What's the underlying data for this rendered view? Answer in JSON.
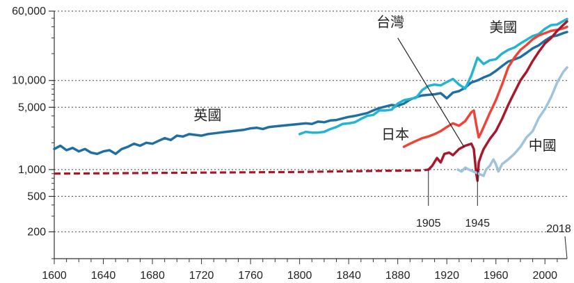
{
  "chart_data": {
    "type": "line",
    "title": "",
    "xlabel": "",
    "ylabel": "",
    "xlim": [
      1600,
      2018
    ],
    "ylim": [
      100,
      60000
    ],
    "y_scale": "log",
    "grid": "horizontal dotted at labeled y ticks",
    "legend": "none (series labelled directly on chart)",
    "x_ticks": [
      1600,
      1640,
      1680,
      1720,
      1760,
      1800,
      1840,
      1880,
      1920,
      1960,
      2000
    ],
    "x_tick_labels": [
      "1600",
      "1640",
      "1680",
      "1720",
      "1760",
      "1800",
      "1840",
      "1880",
      "1920",
      "1960",
      "2000"
    ],
    "y_ticks": [
      200,
      500,
      1000,
      5000,
      10000,
      60000
    ],
    "y_tick_labels": [
      "200",
      "500",
      "1,000",
      "5,000",
      "10,000",
      "60,000"
    ],
    "series": [
      {
        "name": "英國",
        "color": "#1f6fa3",
        "style": "solid",
        "x": [
          1600,
          1605,
          1610,
          1615,
          1620,
          1625,
          1630,
          1635,
          1640,
          1645,
          1650,
          1655,
          1660,
          1665,
          1670,
          1675,
          1680,
          1685,
          1690,
          1695,
          1700,
          1705,
          1710,
          1715,
          1720,
          1725,
          1730,
          1735,
          1740,
          1745,
          1750,
          1755,
          1760,
          1765,
          1770,
          1775,
          1780,
          1785,
          1790,
          1795,
          1800,
          1805,
          1810,
          1815,
          1820,
          1825,
          1830,
          1835,
          1840,
          1845,
          1850,
          1855,
          1860,
          1865,
          1870,
          1875,
          1880,
          1885,
          1890,
          1895,
          1900,
          1905,
          1910,
          1915,
          1920,
          1925,
          1930,
          1935,
          1940,
          1945,
          1950,
          1955,
          1960,
          1965,
          1970,
          1975,
          1980,
          1985,
          1990,
          1995,
          2000,
          2005,
          2010,
          2015,
          2018
        ],
        "values": [
          1700,
          1850,
          1650,
          1750,
          1600,
          1700,
          1550,
          1500,
          1600,
          1650,
          1500,
          1700,
          1800,
          1950,
          1850,
          2000,
          1950,
          2100,
          2250,
          2150,
          2400,
          2350,
          2500,
          2450,
          2400,
          2500,
          2550,
          2600,
          2650,
          2700,
          2750,
          2800,
          2900,
          2950,
          2850,
          3000,
          3050,
          3100,
          3150,
          3200,
          3250,
          3300,
          3250,
          3450,
          3400,
          3550,
          3600,
          3750,
          3900,
          4000,
          4150,
          4300,
          4600,
          4900,
          5100,
          5300,
          5200,
          5500,
          6100,
          6500,
          6800,
          6900,
          7000,
          7200,
          6300,
          7300,
          7600,
          8300,
          9500,
          10000,
          10800,
          11500,
          12800,
          14500,
          16300,
          17200,
          18300,
          20400,
          22900,
          24800,
          28000,
          31000,
          32000,
          34000,
          35000
        ]
      },
      {
        "name": "美國",
        "color": "#22b5d1",
        "style": "solid",
        "x": [
          1800,
          1805,
          1810,
          1815,
          1820,
          1825,
          1830,
          1835,
          1840,
          1845,
          1850,
          1855,
          1860,
          1865,
          1870,
          1875,
          1880,
          1885,
          1890,
          1895,
          1900,
          1905,
          1910,
          1915,
          1920,
          1925,
          1930,
          1935,
          1940,
          1945,
          1950,
          1955,
          1960,
          1965,
          1970,
          1975,
          1980,
          1985,
          1990,
          1995,
          2000,
          2005,
          2010,
          2015,
          2018
        ],
        "values": [
          2500,
          2650,
          2600,
          2600,
          2650,
          2850,
          3000,
          3250,
          3300,
          3400,
          3700,
          4000,
          4100,
          4600,
          4600,
          4700,
          5500,
          6000,
          6200,
          6400,
          7800,
          8700,
          9000,
          8800,
          9600,
          10400,
          9000,
          8100,
          11400,
          18000,
          15300,
          16800,
          17300,
          20000,
          22000,
          23400,
          26000,
          28600,
          31500,
          33200,
          38000,
          41800,
          42500,
          46500,
          49000
        ]
      },
      {
        "name": "日本",
        "color": "#ef4338",
        "style": "solid",
        "x": [
          1885,
          1890,
          1895,
          1900,
          1905,
          1910,
          1915,
          1920,
          1925,
          1930,
          1935,
          1940,
          1942,
          1944,
          1945,
          1946,
          1948,
          1950,
          1955,
          1960,
          1965,
          1970,
          1975,
          1980,
          1985,
          1990,
          1995,
          2000,
          2005,
          2010,
          2015,
          2018
        ],
        "values": [
          1800,
          1950,
          2100,
          2250,
          2350,
          2500,
          2700,
          3000,
          3300,
          3100,
          3500,
          4400,
          4600,
          3200,
          2700,
          2300,
          2600,
          3000,
          4300,
          6000,
          9000,
          14000,
          18000,
          22000,
          25000,
          29000,
          32000,
          34000,
          36000,
          37000,
          38500,
          40000
        ]
      },
      {
        "name": "台灣",
        "color": "#a8172a",
        "style": "dashed",
        "x": [
          1600,
          1650,
          1700,
          1750,
          1800,
          1850,
          1900,
          1905
        ],
        "values": [
          900,
          910,
          920,
          930,
          940,
          960,
          980,
          1000
        ]
      },
      {
        "name": "台灣",
        "color": "#a8172a",
        "style": "solid",
        "x": [
          1905,
          1908,
          1912,
          1915,
          1918,
          1922,
          1925,
          1930,
          1935,
          1940,
          1942,
          1944,
          1945,
          1946,
          1948,
          1950,
          1955,
          1960,
          1965,
          1970,
          1975,
          1980,
          1985,
          1990,
          1995,
          2000,
          2005,
          2010,
          2015,
          2018
        ],
        "values": [
          1000,
          1100,
          1350,
          1200,
          1500,
          1550,
          1450,
          1700,
          1850,
          1950,
          1700,
          900,
          750,
          1200,
          1450,
          1700,
          2200,
          2700,
          3700,
          5300,
          7300,
          10000,
          12500,
          16500,
          21000,
          26000,
          30000,
          36000,
          42000,
          46000
        ]
      },
      {
        "name": "中國",
        "color": "#9ec3da",
        "style": "solid",
        "x": [
          1929,
          1932,
          1935,
          1938,
          1950,
          1952,
          1955,
          1958,
          1960,
          1962,
          1965,
          1970,
          1975,
          1980,
          1985,
          1990,
          1995,
          2000,
          2005,
          2010,
          2015,
          2018
        ],
        "values": [
          1000,
          950,
          1050,
          1000,
          850,
          1000,
          1100,
          1300,
          1150,
          950,
          1150,
          1300,
          1500,
          1800,
          2300,
          2700,
          3800,
          4800,
          6500,
          9500,
          12500,
          14000
        ]
      }
    ],
    "series_labels": [
      {
        "text": "英國",
        "x": 1725,
        "y": 3600
      },
      {
        "text": "美國",
        "x": 1966,
        "y": 35000
      },
      {
        "text": "台灣",
        "x": 1874,
        "y": 40000
      },
      {
        "text": "日本",
        "x": 1878,
        "y": 2200
      },
      {
        "text": "中國",
        "x": 1998,
        "y": 1650
      }
    ],
    "annotations": [
      {
        "text": "1905",
        "x": 1905
      },
      {
        "text": "1945",
        "x": 1945
      },
      {
        "text": "2018",
        "x": 2018
      }
    ]
  }
}
